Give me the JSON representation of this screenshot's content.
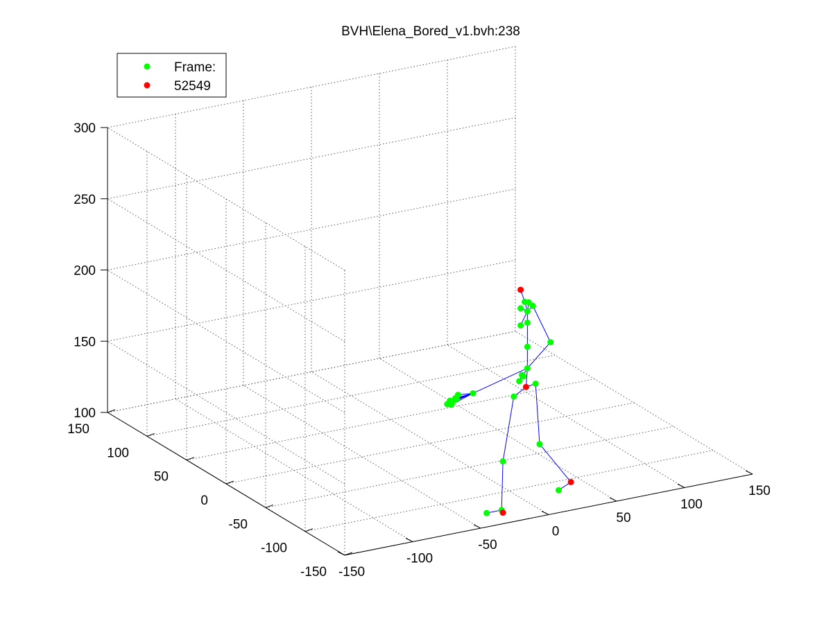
{
  "chart_data": {
    "type": "scatter",
    "title": "BVH\\Elena_Bored_v1.bvh:238",
    "xlabel": "",
    "ylabel": "",
    "zlabel": "",
    "xlim": [
      -150,
      150
    ],
    "ylim": [
      -150,
      150
    ],
    "zlim": [
      100,
      300
    ],
    "x_ticks": [
      "-150",
      "-100",
      "-50",
      "0",
      "50",
      "100",
      "150"
    ],
    "y_ticks": [
      "-150",
      "-100",
      "-50",
      "0",
      "50",
      "100",
      "150"
    ],
    "z_ticks": [
      "100",
      "150",
      "200",
      "250",
      "300"
    ],
    "grid": true,
    "legend": {
      "placement": "top-left",
      "entries": [
        {
          "label": "Frame:",
          "color": "#00ff00"
        },
        {
          "label": "52549",
          "color": "#ff0000"
        }
      ]
    },
    "colors": {
      "joint": "#00ff00",
      "end_effector": "#ff0000",
      "bone": "#0000ff",
      "grid": "#555555"
    },
    "series": [
      {
        "name": "Frame:",
        "color": "#00ff00",
        "points": [
          {
            "id": "neck",
            "x": 60,
            "y": -20,
            "z": 188
          },
          {
            "id": "head-base",
            "x": 58,
            "y": -20,
            "z": 195
          },
          {
            "id": "head-l",
            "x": 55,
            "y": -20,
            "z": 191
          },
          {
            "id": "head-r",
            "x": 61,
            "y": -20,
            "z": 194
          },
          {
            "id": "r-shoulder",
            "x": 64,
            "y": -20,
            "z": 191
          },
          {
            "id": "l-shoulder",
            "x": 55,
            "y": -20,
            "z": 179
          },
          {
            "id": "spine3",
            "x": 60,
            "y": -20,
            "z": 180
          },
          {
            "id": "r-elbow",
            "x": 77,
            "y": -20,
            "z": 163
          },
          {
            "id": "spine2",
            "x": 60,
            "y": -20,
            "z": 163
          },
          {
            "id": "spine1",
            "x": 60,
            "y": -20,
            "z": 148
          },
          {
            "id": "l-elbow",
            "x": 56,
            "y": -20,
            "z": 144
          },
          {
            "id": "hip-c",
            "x": 54,
            "y": -20,
            "z": 140
          },
          {
            "id": "hand-r1",
            "x": 57,
            "y": -20,
            "z": 143
          },
          {
            "id": "l-wrist",
            "x": 20,
            "y": -20,
            "z": 138
          },
          {
            "id": "l-hand1",
            "x": 9,
            "y": -20,
            "z": 139
          },
          {
            "id": "l-hand2",
            "x": 7,
            "y": -20,
            "z": 137
          },
          {
            "id": "l-hand3",
            "x": 5,
            "y": -20,
            "z": 135
          },
          {
            "id": "l-hand4",
            "x": 3,
            "y": -20,
            "z": 136
          },
          {
            "id": "l-hand5",
            "x": 1,
            "y": -20,
            "z": 134
          },
          {
            "id": "l-hand6",
            "x": 4,
            "y": -20,
            "z": 133
          },
          {
            "id": "l-hand7",
            "x": 8,
            "y": -20,
            "z": 136
          },
          {
            "id": "l-hip",
            "x": 50,
            "y": -20,
            "z": 130
          },
          {
            "id": "r-hip",
            "x": 66,
            "y": -20,
            "z": 136
          },
          {
            "id": "l-knee",
            "x": 42,
            "y": -20,
            "z": 86
          },
          {
            "id": "r-knee",
            "x": 69,
            "y": -20,
            "z": 93
          },
          {
            "id": "l-ankle",
            "x": 41,
            "y": -20,
            "z": 52
          },
          {
            "id": "l-foot",
            "x": 30,
            "y": -20,
            "z": 52
          },
          {
            "id": "r-foot",
            "x": 83,
            "y": -20,
            "z": 58
          }
        ]
      },
      {
        "name": "52549",
        "color": "#ff0000",
        "points": [
          {
            "id": "head-top",
            "x": 55,
            "y": -20,
            "z": 204
          },
          {
            "id": "hips",
            "x": 59,
            "y": -20,
            "z": 135
          },
          {
            "id": "l-toe",
            "x": 42,
            "y": -20,
            "z": 50
          },
          {
            "id": "r-toe",
            "x": 92,
            "y": -20,
            "z": 62
          }
        ]
      }
    ],
    "bones": [
      [
        "head-top",
        "head-base"
      ],
      [
        "head-base",
        "neck"
      ],
      [
        "head-l",
        "neck"
      ],
      [
        "head-r",
        "neck"
      ],
      [
        "neck",
        "r-shoulder"
      ],
      [
        "neck",
        "l-shoulder"
      ],
      [
        "neck",
        "spine3"
      ],
      [
        "r-shoulder",
        "r-elbow"
      ],
      [
        "r-elbow",
        "spine1"
      ],
      [
        "spine3",
        "spine2"
      ],
      [
        "spine2",
        "spine1"
      ],
      [
        "spine1",
        "hips"
      ],
      [
        "spine1",
        "hip-c"
      ],
      [
        "hip-c",
        "l-elbow"
      ],
      [
        "l-elbow",
        "hand-r1"
      ],
      [
        "spine1",
        "l-wrist"
      ],
      [
        "l-wrist",
        "l-hand1"
      ],
      [
        "l-wrist",
        "l-hand2"
      ],
      [
        "l-wrist",
        "l-hand3"
      ],
      [
        "l-wrist",
        "l-hand4"
      ],
      [
        "l-wrist",
        "l-hand5"
      ],
      [
        "l-wrist",
        "l-hand6"
      ],
      [
        "l-wrist",
        "l-hand7"
      ],
      [
        "hips",
        "l-hip"
      ],
      [
        "hips",
        "r-hip"
      ],
      [
        "l-hip",
        "l-knee"
      ],
      [
        "l-knee",
        "l-ankle"
      ],
      [
        "l-ankle",
        "l-foot"
      ],
      [
        "l-ankle",
        "l-toe"
      ],
      [
        "r-hip",
        "r-knee"
      ],
      [
        "r-knee",
        "r-toe"
      ],
      [
        "r-toe",
        "r-foot"
      ]
    ]
  }
}
